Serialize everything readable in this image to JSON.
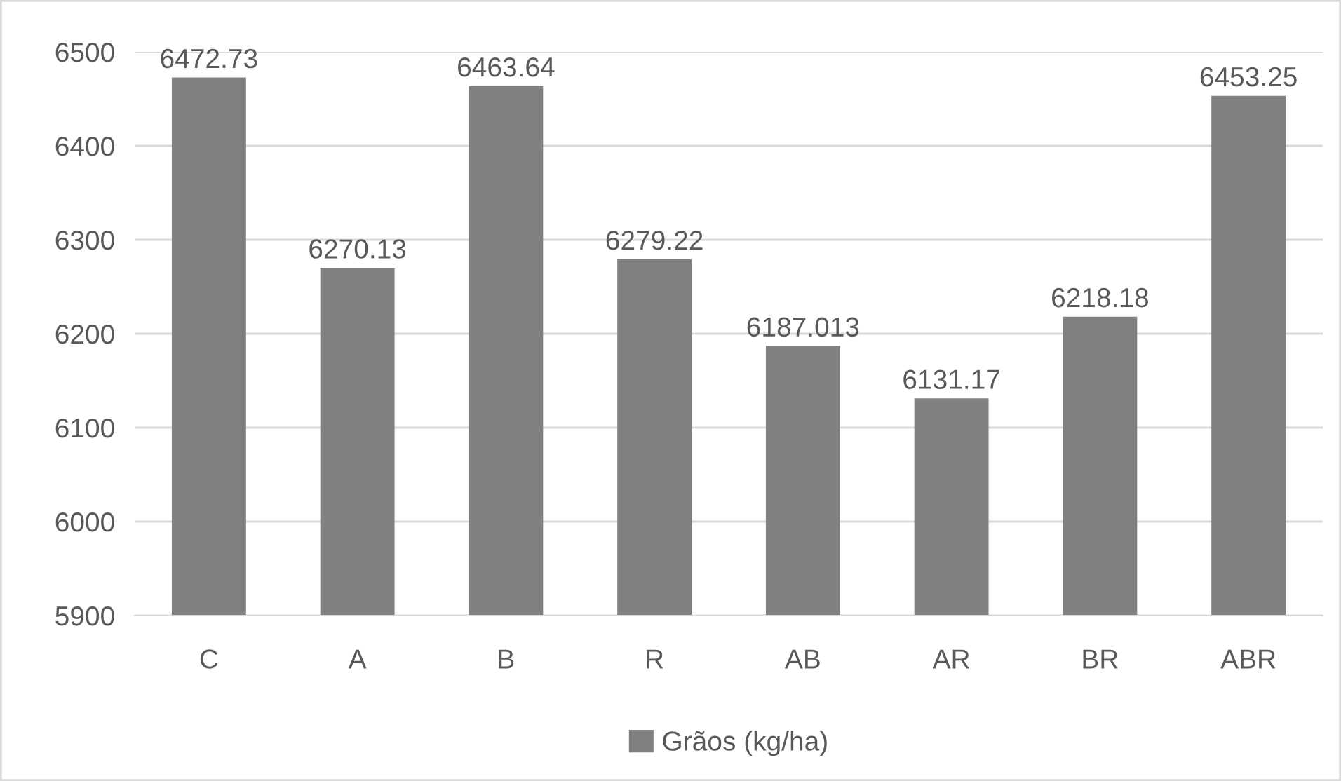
{
  "chart_data": {
    "type": "bar",
    "categories": [
      "C",
      "A",
      "B",
      "R",
      "AB",
      "AR",
      "BR",
      "ABR"
    ],
    "series": [
      {
        "name": "Grãos (kg/ha)",
        "color": "#808080",
        "values": [
          6472.73,
          6270.13,
          6463.64,
          6279.22,
          6187.013,
          6131.17,
          6218.18,
          6453.25
        ]
      }
    ],
    "ylim": [
      5900,
      6500
    ],
    "yticks": [
      5900,
      6000,
      6100,
      6200,
      6300,
      6400,
      6500
    ],
    "grid": "y",
    "legend": "bottom",
    "data_labels": true
  }
}
